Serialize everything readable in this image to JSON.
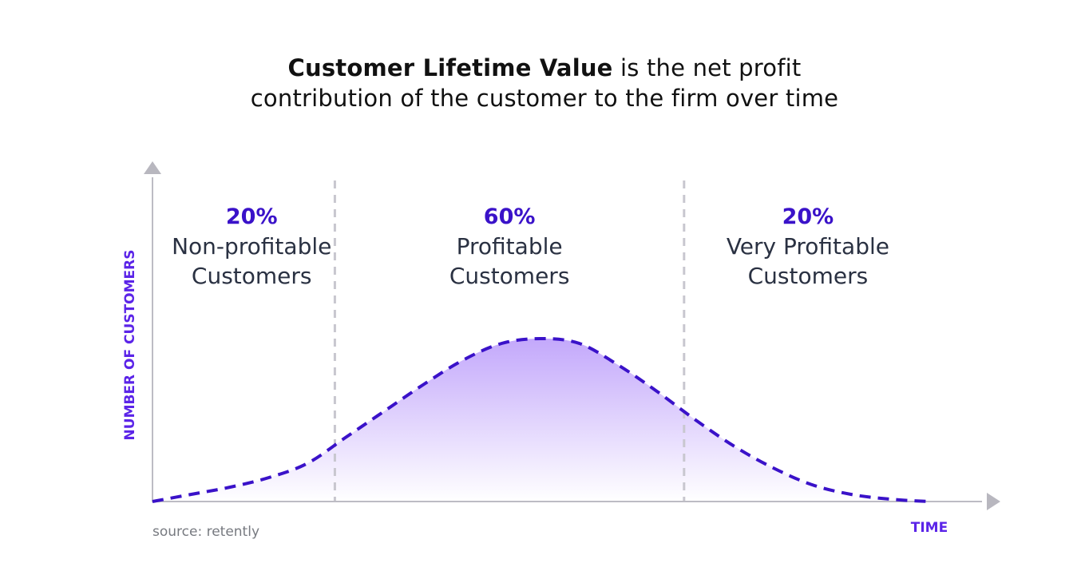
{
  "title": {
    "bold_part": "Customer Lifetime Value",
    "rest_line1": " is the net profit",
    "line2": "contribution of the customer to the firm over time"
  },
  "source": "source: retently",
  "colors": {
    "accent": "#3a12c9",
    "curve": "#3a12c9",
    "fill_top": "#c3a8fb",
    "axis": "#bdbcc4",
    "text": "#2a3142"
  },
  "chart_data": {
    "type": "area",
    "xlabel": "TIME",
    "ylabel": "NUMBER OF CUSTOMERS",
    "xlim": [
      0,
      100
    ],
    "ylim": [
      0,
      100
    ],
    "x": [
      0,
      5,
      10,
      15,
      20,
      25,
      30,
      35,
      40,
      45,
      50,
      55,
      60,
      65,
      70,
      75,
      80,
      85,
      90,
      95,
      100
    ],
    "series": [
      {
        "values": [
          0,
          3,
          6,
          10,
          16,
          27,
          38,
          49,
          59,
          66,
          68,
          66,
          57,
          46,
          34,
          23,
          14,
          7,
          3,
          1,
          0
        ]
      }
    ],
    "dividers": [
      23.5,
      68.5
    ],
    "segments": [
      {
        "percent": "20%",
        "line1": "Non-profitable",
        "line2": "Customers"
      },
      {
        "percent": "60%",
        "line1": "Profitable",
        "line2": "Customers"
      },
      {
        "percent": "20%",
        "line1": "Very Profitable",
        "line2": "Customers"
      }
    ]
  }
}
